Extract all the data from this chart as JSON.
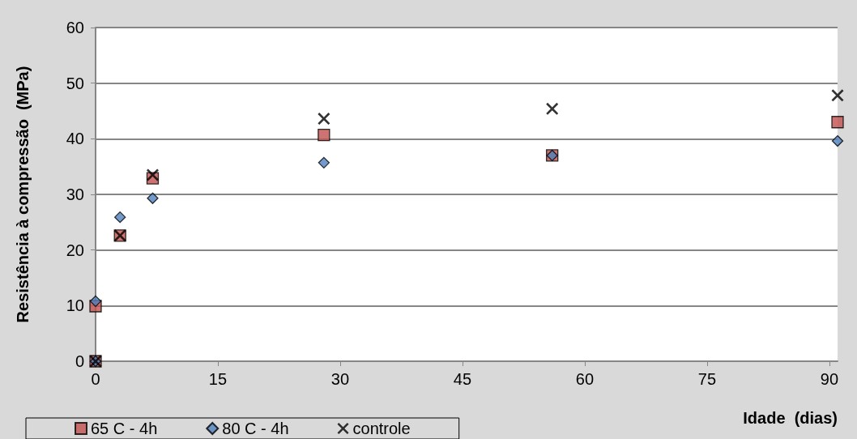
{
  "chart_data": {
    "type": "scatter",
    "xlabel": "Idade  (dias)",
    "ylabel": "Resistência à compressão  (MPa)",
    "xlim": [
      0,
      91
    ],
    "xticks": [
      0,
      15,
      30,
      45,
      60,
      75,
      90
    ],
    "ylim": [
      0,
      60
    ],
    "yticks": [
      0,
      10,
      20,
      30,
      40,
      50,
      60
    ],
    "grid": "y",
    "legend": "bottom left",
    "series": [
      {
        "name": "65 C - 4h",
        "color": "#c0504d",
        "marker": "square",
        "x": [
          0,
          0,
          3,
          7,
          28,
          56,
          91
        ],
        "values": [
          0,
          9.9,
          22.6,
          32.9,
          40.7,
          37.0,
          43.0
        ]
      },
      {
        "name": "80 C - 4h",
        "color": "#4f81bd",
        "marker": "diamond",
        "x": [
          0,
          0,
          3,
          7,
          28,
          56,
          91
        ],
        "values": [
          0,
          10.8,
          25.9,
          29.3,
          35.7,
          37.0,
          39.6
        ]
      },
      {
        "name": "controle",
        "color": "#000000",
        "marker": "cross",
        "x": [
          0,
          3,
          7,
          28,
          56,
          91
        ],
        "values": [
          0,
          22.6,
          33.5,
          43.6,
          45.4,
          47.8
        ]
      }
    ]
  }
}
